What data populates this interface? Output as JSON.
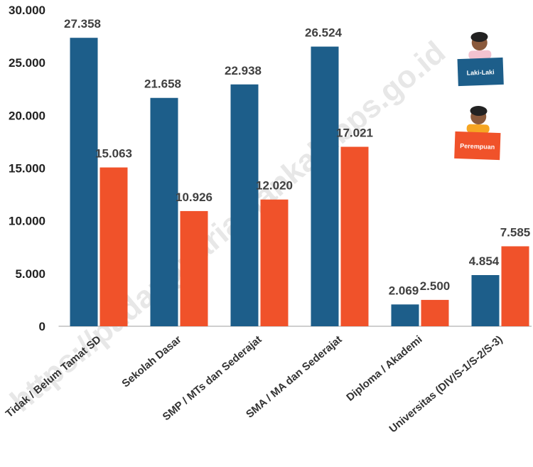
{
  "chart_data": {
    "type": "bar",
    "watermark": "https://padangpariamankab.bps.go.id",
    "categories": [
      "Tidak / Belum Tamat SD",
      "Sekolah Dasar",
      "SMP / MTs dan Sederajat",
      "SMA / MA dan Sederajat",
      "Diploma / Akademi",
      "Universitas (DIV/S-1/S-2/S-3)"
    ],
    "series": [
      {
        "name": "Laki-Laki",
        "color": "#1d5e8a",
        "values": [
          27358,
          21658,
          22938,
          26524,
          2069,
          4854
        ],
        "value_labels": [
          "27.358",
          "21.658",
          "22.938",
          "26.524",
          "2.069",
          "4.854"
        ]
      },
      {
        "name": "Perempuan",
        "color": "#f0522a",
        "values": [
          15063,
          10926,
          12020,
          17021,
          2500,
          7585
        ],
        "value_labels": [
          "15.063",
          "10.926",
          "12.020",
          "17.021",
          "2.500",
          "7.585"
        ]
      }
    ],
    "ylim": [
      0,
      30000
    ],
    "yticks": [
      0,
      {
        "value": 5000,
        "label": "5.000"
      },
      {
        "value": 10000,
        "label": "10.000"
      },
      {
        "value": 15000,
        "label": "15.000"
      },
      {
        "value": 20000,
        "label": "20.000"
      },
      {
        "value": 25000,
        "label": "25.000"
      },
      {
        "value": 30000,
        "label": "30.000"
      }
    ],
    "grid": false
  }
}
